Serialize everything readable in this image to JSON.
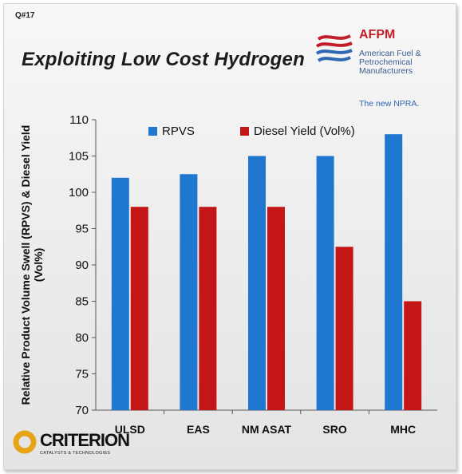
{
  "slide": {
    "id": "Q#17",
    "title": "Exploiting Low Cost Hydrogen"
  },
  "logo_afpm": {
    "name": "AFPM",
    "full_name": "American Fuel & Petrochemical Manufacturers",
    "tagline": "The new NPRA."
  },
  "logo_criterion": {
    "name": "CRITERION",
    "subtitle": "CATALYSTS & TECHNOLOGIES"
  },
  "colors": {
    "rpvs": "#1f77d0",
    "diesel": "#c41616",
    "afpm_red": "#c21f2b",
    "afpm_blue": "#2f67b2",
    "criterion_gold": "#e8a317"
  },
  "chart_data": {
    "type": "bar",
    "categories": [
      "ULSD",
      "EAS",
      "NM ASAT",
      "SRO",
      "MHC"
    ],
    "series": [
      {
        "name": "RPVS",
        "values": [
          102,
          102.5,
          105,
          105,
          108
        ]
      },
      {
        "name": "Diesel Yield (Vol%)",
        "values": [
          98,
          98,
          98,
          92.5,
          85
        ]
      }
    ],
    "ylabel": "Relative Product Volume Swell (RPVS) & Diesel Yield (Vol%)",
    "ylim": [
      70,
      110
    ],
    "yticks": [
      70,
      75,
      80,
      85,
      90,
      95,
      100,
      105,
      110
    ],
    "grid": false,
    "legend_position": "top"
  }
}
